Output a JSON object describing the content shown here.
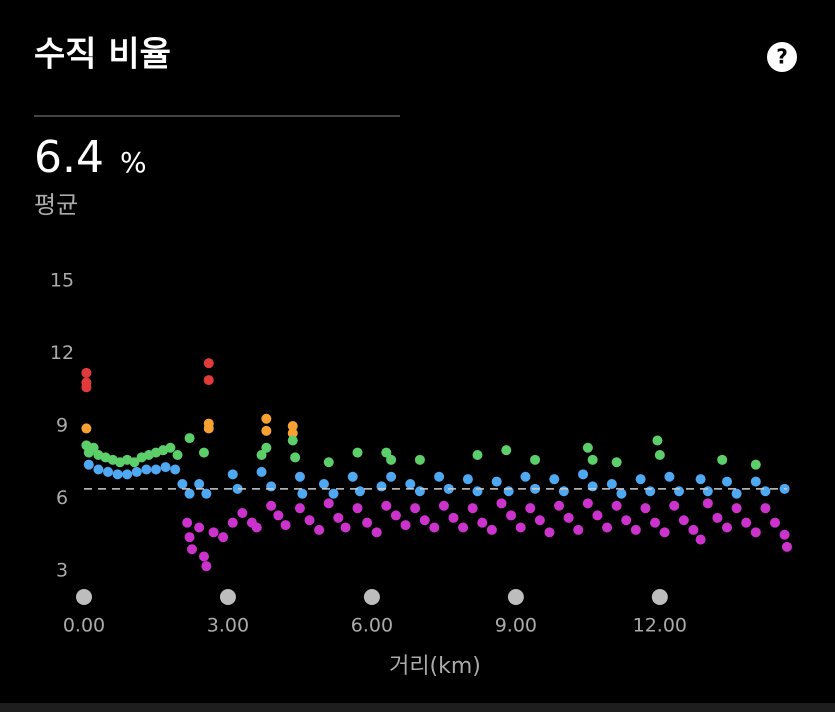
{
  "help_icon": "?",
  "chart_data": {
    "type": "scatter",
    "title": "수직 비율",
    "average": {
      "value": 6.4,
      "unit": "%",
      "label": "평균"
    },
    "x_label": "거리(km)",
    "xlim": [
      0,
      14.65
    ],
    "ylim": [
      3,
      15
    ],
    "xticks": [
      {
        "value": 0,
        "label": "0.00"
      },
      {
        "value": 3,
        "label": "3.00"
      },
      {
        "value": 6,
        "label": "6.00"
      },
      {
        "value": 9,
        "label": "9.00"
      },
      {
        "value": 12,
        "label": "12.00"
      }
    ],
    "yticks": [
      3,
      6,
      9,
      12,
      15
    ],
    "series": [
      {
        "color": "#e03a3a",
        "x": [
          0.05,
          0.05,
          0.05,
          2.6,
          2.6
        ],
        "values": [
          11.2,
          10.8,
          10.6,
          11.6,
          10.9
        ]
      },
      {
        "color": "#f7a133",
        "x": [
          0.05,
          2.6,
          2.6,
          3.8,
          3.8,
          4.35,
          4.35
        ],
        "values": [
          8.9,
          9.1,
          8.9,
          9.3,
          8.8,
          9.0,
          8.7
        ]
      },
      {
        "color": "#5ccf6a",
        "x": [
          0.05,
          0.1,
          0.2,
          0.3,
          0.45,
          0.6,
          0.75,
          0.9,
          1.05,
          1.2,
          1.35,
          1.5,
          1.65,
          1.8,
          1.95,
          2.2,
          2.5,
          3.7,
          3.8,
          4.35,
          4.4,
          5.1,
          5.7,
          6.3,
          6.4,
          7.0,
          8.2,
          8.8,
          9.4,
          10.5,
          10.6,
          11.1,
          11.95,
          12.0,
          13.3,
          14.0
        ],
        "values": [
          8.2,
          7.9,
          8.1,
          7.8,
          7.7,
          7.6,
          7.5,
          7.6,
          7.5,
          7.7,
          7.8,
          7.9,
          8.0,
          8.1,
          7.8,
          8.5,
          7.9,
          7.8,
          8.1,
          8.4,
          7.7,
          7.5,
          7.9,
          7.9,
          7.6,
          7.6,
          7.8,
          8.0,
          7.6,
          8.1,
          7.6,
          7.5,
          8.4,
          7.8,
          7.6,
          7.4
        ]
      },
      {
        "color": "#4fa8f2",
        "x": [
          0.1,
          0.3,
          0.5,
          0.7,
          0.9,
          1.1,
          1.3,
          1.5,
          1.7,
          1.9,
          2.05,
          2.2,
          2.4,
          2.55,
          3.1,
          3.2,
          3.7,
          3.9,
          4.5,
          4.55,
          5.0,
          5.2,
          5.6,
          5.75,
          6.2,
          6.4,
          6.8,
          7.0,
          7.4,
          7.6,
          8.0,
          8.2,
          8.6,
          8.85,
          9.2,
          9.4,
          9.8,
          10.0,
          10.4,
          10.6,
          11.0,
          11.2,
          11.6,
          11.8,
          12.2,
          12.4,
          12.85,
          13.0,
          13.4,
          13.6,
          14.0,
          14.2,
          14.6
        ],
        "values": [
          7.4,
          7.2,
          7.1,
          7.0,
          7.0,
          7.1,
          7.2,
          7.2,
          7.3,
          7.2,
          6.6,
          6.2,
          6.6,
          6.2,
          7.0,
          6.4,
          7.1,
          6.5,
          6.9,
          6.2,
          6.6,
          6.2,
          6.9,
          6.3,
          6.5,
          6.9,
          6.6,
          6.3,
          6.9,
          6.4,
          6.8,
          6.3,
          6.7,
          6.3,
          6.9,
          6.4,
          6.8,
          6.3,
          7.0,
          6.5,
          6.6,
          6.2,
          6.8,
          6.3,
          6.9,
          6.3,
          6.8,
          6.3,
          6.7,
          6.2,
          6.7,
          6.3,
          6.4
        ]
      },
      {
        "color": "#cc33cc",
        "x": [
          2.15,
          2.2,
          2.25,
          2.4,
          2.5,
          2.55,
          2.7,
          2.9,
          3.1,
          3.3,
          3.5,
          3.6,
          3.9,
          4.05,
          4.2,
          4.5,
          4.7,
          4.9,
          5.1,
          5.3,
          5.45,
          5.7,
          5.9,
          6.1,
          6.3,
          6.5,
          6.7,
          6.9,
          7.1,
          7.3,
          7.5,
          7.7,
          7.9,
          8.1,
          8.3,
          8.5,
          8.7,
          8.9,
          9.1,
          9.3,
          9.5,
          9.7,
          9.9,
          10.1,
          10.3,
          10.5,
          10.7,
          10.9,
          11.1,
          11.3,
          11.5,
          11.7,
          11.9,
          12.1,
          12.3,
          12.5,
          12.7,
          12.85,
          13.0,
          13.2,
          13.4,
          13.6,
          13.8,
          14.0,
          14.2,
          14.4,
          14.6,
          14.65
        ],
        "values": [
          5.0,
          4.4,
          3.9,
          4.8,
          3.6,
          3.2,
          4.6,
          4.4,
          5.0,
          5.4,
          5.0,
          4.8,
          5.7,
          5.3,
          4.9,
          5.6,
          5.1,
          4.7,
          5.8,
          5.2,
          4.8,
          5.6,
          5.0,
          4.6,
          5.7,
          5.3,
          4.9,
          5.6,
          5.1,
          4.8,
          5.7,
          5.2,
          4.8,
          5.6,
          5.0,
          4.7,
          5.8,
          5.3,
          4.8,
          5.6,
          5.1,
          4.6,
          5.7,
          5.2,
          4.7,
          5.8,
          5.3,
          4.8,
          5.7,
          5.1,
          4.7,
          5.6,
          5.0,
          4.6,
          5.7,
          5.1,
          4.7,
          4.3,
          5.8,
          5.2,
          4.8,
          5.6,
          5.0,
          4.6,
          5.6,
          5.0,
          4.5,
          4.0
        ]
      }
    ]
  }
}
